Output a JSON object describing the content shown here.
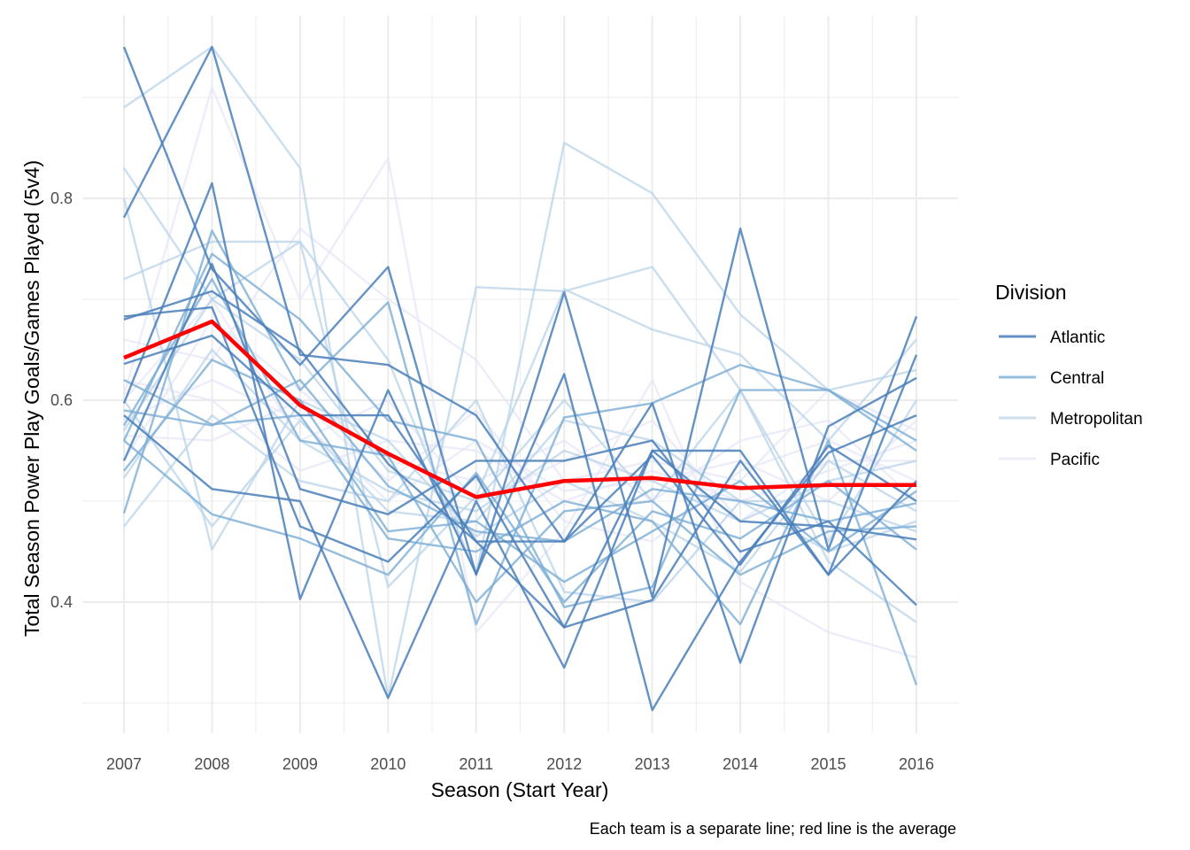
{
  "chart_data": {
    "type": "line",
    "xlabel": "Season (Start Year)",
    "ylabel": "Total Season Power Play Goals/Games Played (5v4)",
    "caption": "Each team is a separate line; red line is the average",
    "legend_title": "Division",
    "legend_position": "right",
    "grid": true,
    "x": [
      2007,
      2008,
      2009,
      2010,
      2011,
      2012,
      2013,
      2014,
      2015,
      2016
    ],
    "x_tick_labels": [
      "2007",
      "2008",
      "2009",
      "2010",
      "2011",
      "2012",
      "2013",
      "2014",
      "2015",
      "2016"
    ],
    "y_ticks": [
      0.4,
      0.6,
      0.8
    ],
    "y_tick_labels": [
      "0.4",
      "0.6",
      "0.8"
    ],
    "ylim": [
      0.285,
      0.965
    ],
    "divisions": [
      {
        "label": "Atlantic",
        "color": "#4a7fba",
        "opacity": 0.85
      },
      {
        "label": "Central",
        "color": "#7aadd4",
        "opacity": 0.8
      },
      {
        "label": "Metropolitan",
        "color": "#b8d3e8",
        "opacity": 0.75
      },
      {
        "label": "Pacific",
        "color": "#e6e6f8",
        "opacity": 0.7
      }
    ],
    "average": {
      "color": "#ff0000",
      "values": [
        0.642,
        0.678,
        0.595,
        0.547,
        0.504,
        0.52,
        0.523,
        0.513,
        0.516,
        0.516
      ]
    },
    "series": [
      {
        "division": "Atlantic",
        "values": [
          0.95,
          0.73,
          0.635,
          0.732,
          0.427,
          0.707,
          0.405,
          0.77,
          0.452,
          0.683
        ]
      },
      {
        "division": "Atlantic",
        "values": [
          0.781,
          0.95,
          0.645,
          0.635,
          0.585,
          0.46,
          0.597,
          0.34,
          0.574,
          0.622
        ]
      },
      {
        "division": "Atlantic",
        "values": [
          0.683,
          0.692,
          0.475,
          0.44,
          0.525,
          0.375,
          0.55,
          0.55,
          0.427,
          0.645
        ]
      },
      {
        "division": "Atlantic",
        "values": [
          0.597,
          0.815,
          0.403,
          0.61,
          0.428,
          0.626,
          0.293,
          0.44,
          0.548,
          0.585
        ]
      },
      {
        "division": "Atlantic",
        "values": [
          0.54,
          0.735,
          0.512,
          0.487,
          0.54,
          0.54,
          0.56,
          0.45,
          0.48,
          0.397
        ]
      },
      {
        "division": "Atlantic",
        "values": [
          0.585,
          0.512,
          0.5,
          0.305,
          0.5,
          0.335,
          0.55,
          0.48,
          0.475,
          0.462
        ]
      },
      {
        "division": "Atlantic",
        "values": [
          0.636,
          0.664,
          0.585,
          0.585,
          0.46,
          0.375,
          0.402,
          0.54,
          0.427,
          0.52
        ]
      },
      {
        "division": "Atlantic",
        "values": [
          0.68,
          0.708,
          0.65,
          0.537,
          0.46,
          0.46,
          0.545,
          0.437,
          0.555,
          0.5
        ]
      },
      {
        "division": "Central",
        "values": [
          0.56,
          0.745,
          0.68,
          0.58,
          0.56,
          0.395,
          0.415,
          0.61,
          0.61,
          0.56
        ]
      },
      {
        "division": "Central",
        "values": [
          0.488,
          0.768,
          0.61,
          0.697,
          0.378,
          0.583,
          0.597,
          0.635,
          0.61,
          0.55
        ]
      },
      {
        "division": "Central",
        "values": [
          0.62,
          0.576,
          0.585,
          0.463,
          0.45,
          0.5,
          0.48,
          0.378,
          0.56,
          0.318
        ]
      },
      {
        "division": "Central",
        "values": [
          0.56,
          0.487,
          0.463,
          0.427,
          0.528,
          0.4,
          0.49,
          0.463,
          0.52,
          0.452
        ]
      },
      {
        "division": "Central",
        "values": [
          0.575,
          0.72,
          0.56,
          0.545,
          0.4,
          0.49,
          0.5,
          0.427,
          0.47,
          0.475
        ]
      },
      {
        "division": "Central",
        "values": [
          0.59,
          0.575,
          0.62,
          0.515,
          0.47,
          0.46,
          0.512,
          0.5,
          0.48,
          0.498
        ]
      },
      {
        "division": "Central",
        "values": [
          0.53,
          0.64,
          0.6,
          0.47,
          0.48,
          0.42,
          0.47,
          0.52,
          0.45,
          0.51
        ]
      },
      {
        "division": "Metropolitan",
        "values": [
          0.89,
          0.95,
          0.83,
          0.305,
          0.712,
          0.708,
          0.732,
          0.61,
          0.44,
          0.38
        ]
      },
      {
        "division": "Metropolitan",
        "values": [
          0.83,
          0.7,
          0.757,
          0.64,
          0.427,
          0.855,
          0.805,
          0.685,
          0.61,
          0.63
        ]
      },
      {
        "division": "Metropolitan",
        "values": [
          0.72,
          0.757,
          0.757,
          0.415,
          0.505,
          0.71,
          0.67,
          0.645,
          0.56,
          0.66
        ]
      },
      {
        "division": "Metropolitan",
        "values": [
          0.475,
          0.585,
          0.52,
          0.5,
          0.6,
          0.41,
          0.4,
          0.5,
          0.45,
          0.48
        ]
      },
      {
        "division": "Metropolitan",
        "values": [
          0.8,
          0.452,
          0.6,
          0.56,
          0.465,
          0.52,
          0.48,
          0.43,
          0.54,
          0.49
        ]
      },
      {
        "division": "Metropolitan",
        "values": [
          0.523,
          0.65,
          0.56,
          0.51,
          0.49,
          0.55,
          0.52,
          0.48,
          0.52,
          0.54
        ]
      },
      {
        "division": "Metropolitan",
        "values": [
          0.6,
          0.475,
          0.58,
          0.49,
          0.48,
          0.58,
          0.56,
          0.5,
          0.5,
          0.47
        ]
      },
      {
        "division": "Metropolitan",
        "values": [
          0.57,
          0.7,
          0.64,
          0.53,
          0.5,
          0.6,
          0.5,
          0.61,
          0.46,
          0.6
        ]
      },
      {
        "division": "Pacific",
        "values": [
          0.605,
          0.91,
          0.7,
          0.84,
          0.37,
          0.47,
          0.62,
          0.42,
          0.37,
          0.345
        ]
      },
      {
        "division": "Pacific",
        "values": [
          0.66,
          0.64,
          0.77,
          0.7,
          0.64,
          0.52,
          0.54,
          0.52,
          0.61,
          0.57
        ]
      },
      {
        "division": "Pacific",
        "values": [
          0.565,
          0.56,
          0.6,
          0.52,
          0.59,
          0.48,
          0.46,
          0.53,
          0.56,
          0.52
        ]
      },
      {
        "division": "Pacific",
        "values": [
          0.62,
          0.6,
          0.53,
          0.56,
          0.55,
          0.5,
          0.53,
          0.5,
          0.53,
          0.56
        ]
      },
      {
        "division": "Pacific",
        "values": [
          0.54,
          0.68,
          0.61,
          0.54,
          0.52,
          0.56,
          0.5,
          0.56,
          0.58,
          0.5
        ]
      },
      {
        "division": "Pacific",
        "values": [
          0.6,
          0.7,
          0.56,
          0.6,
          0.5,
          0.54,
          0.58,
          0.48,
          0.54,
          0.54
        ]
      },
      {
        "division": "Pacific",
        "values": [
          0.58,
          0.62,
          0.58,
          0.5,
          0.56,
          0.51,
          0.52,
          0.54,
          0.5,
          0.58
        ]
      }
    ]
  }
}
